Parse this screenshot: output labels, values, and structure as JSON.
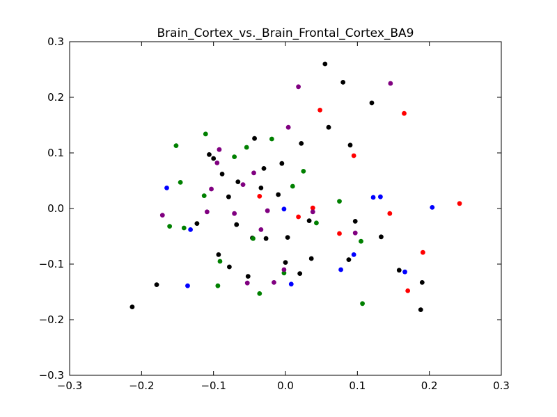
{
  "chart_data": {
    "type": "scatter",
    "title": "Brain_Cortex_vs._Brain_Frontal_Cortex_BA9",
    "xlabel": "",
    "ylabel": "",
    "xlim": [
      -0.3,
      0.3
    ],
    "ylim": [
      -0.3,
      0.3
    ],
    "x_ticks": [
      -0.3,
      -0.2,
      -0.1,
      0.0,
      0.1,
      0.2,
      0.3
    ],
    "y_ticks": [
      -0.3,
      -0.2,
      -0.1,
      0.0,
      0.1,
      0.2,
      0.3
    ],
    "x_tick_labels": [
      "−0.3",
      "−0.2",
      "−0.1",
      "0.0",
      "0.1",
      "0.2",
      "0.3"
    ],
    "y_tick_labels": [
      "−0.3",
      "−0.2",
      "−0.1",
      "0.0",
      "0.1",
      "0.2",
      "0.3"
    ],
    "grid": false,
    "legend": "none",
    "series": [
      {
        "color": "#000000",
        "points": [
          [
            0.055,
            0.26
          ],
          [
            0.08,
            0.227
          ],
          [
            0.12,
            0.19
          ],
          [
            0.06,
            0.146
          ],
          [
            0.022,
            0.117
          ],
          [
            0.09,
            0.114
          ],
          [
            -0.043,
            0.126
          ],
          [
            -0.106,
            0.097
          ],
          [
            -0.1,
            0.09
          ],
          [
            -0.005,
            0.081
          ],
          [
            -0.03,
            0.072
          ],
          [
            -0.088,
            0.062
          ],
          [
            -0.066,
            0.048
          ],
          [
            -0.034,
            0.037
          ],
          [
            -0.079,
            0.021
          ],
          [
            -0.01,
            0.025
          ],
          [
            -0.123,
            -0.027
          ],
          [
            -0.068,
            -0.029
          ],
          [
            0.033,
            -0.022
          ],
          [
            0.097,
            -0.023
          ],
          [
            -0.046,
            -0.053
          ],
          [
            -0.027,
            -0.054
          ],
          [
            0.003,
            -0.052
          ],
          [
            0.133,
            -0.051
          ],
          [
            -0.093,
            -0.083
          ],
          [
            0.036,
            -0.09
          ],
          [
            0.088,
            -0.092
          ],
          [
            0.0,
            -0.097
          ],
          [
            -0.078,
            -0.105
          ],
          [
            0.158,
            -0.111
          ],
          [
            -0.052,
            -0.122
          ],
          [
            0.02,
            -0.117
          ],
          [
            -0.179,
            -0.137
          ],
          [
            0.19,
            -0.133
          ],
          [
            0.188,
            -0.182
          ],
          [
            -0.213,
            -0.177
          ]
        ]
      },
      {
        "color": "#ff0000",
        "points": [
          [
            0.048,
            0.177
          ],
          [
            0.165,
            0.171
          ],
          [
            0.095,
            0.095
          ],
          [
            0.242,
            0.009
          ],
          [
            0.038,
            0.001
          ],
          [
            -0.036,
            0.022
          ],
          [
            0.018,
            -0.015
          ],
          [
            0.145,
            -0.009
          ],
          [
            0.075,
            -0.045
          ],
          [
            0.191,
            -0.079
          ],
          [
            0.17,
            -0.148
          ]
        ]
      },
      {
        "color": "#0000ff",
        "points": [
          [
            -0.165,
            0.037
          ],
          [
            0.122,
            0.02
          ],
          [
            0.132,
            0.021
          ],
          [
            0.204,
            0.002
          ],
          [
            -0.002,
            -0.001
          ],
          [
            -0.132,
            -0.038
          ],
          [
            0.095,
            -0.083
          ],
          [
            0.077,
            -0.11
          ],
          [
            0.166,
            -0.114
          ],
          [
            -0.136,
            -0.139
          ],
          [
            0.008,
            -0.136
          ]
        ]
      },
      {
        "color": "#008000",
        "points": [
          [
            -0.111,
            0.134
          ],
          [
            -0.152,
            0.113
          ],
          [
            -0.054,
            0.11
          ],
          [
            -0.019,
            0.125
          ],
          [
            -0.071,
            0.093
          ],
          [
            0.025,
            0.067
          ],
          [
            -0.146,
            0.047
          ],
          [
            0.01,
            0.04
          ],
          [
            -0.113,
            0.023
          ],
          [
            0.075,
            0.013
          ],
          [
            -0.161,
            -0.032
          ],
          [
            -0.141,
            -0.035
          ],
          [
            0.043,
            -0.026
          ],
          [
            0.105,
            -0.059
          ],
          [
            -0.045,
            -0.054
          ],
          [
            -0.091,
            -0.095
          ],
          [
            -0.002,
            -0.116
          ],
          [
            -0.094,
            -0.139
          ],
          [
            -0.036,
            -0.153
          ],
          [
            0.107,
            -0.171
          ]
        ]
      },
      {
        "color": "#800080",
        "points": [
          [
            0.146,
            0.225
          ],
          [
            0.018,
            0.219
          ],
          [
            0.004,
            0.146
          ],
          [
            -0.092,
            0.106
          ],
          [
            -0.095,
            0.082
          ],
          [
            -0.044,
            0.064
          ],
          [
            -0.059,
            0.043
          ],
          [
            -0.103,
            0.035
          ],
          [
            -0.171,
            -0.012
          ],
          [
            -0.109,
            -0.006
          ],
          [
            -0.071,
            -0.009
          ],
          [
            -0.025,
            -0.004
          ],
          [
            0.038,
            -0.006
          ],
          [
            -0.034,
            -0.038
          ],
          [
            0.097,
            -0.044
          ],
          [
            -0.002,
            -0.11
          ],
          [
            -0.053,
            -0.134
          ],
          [
            -0.016,
            -0.133
          ]
        ]
      }
    ]
  }
}
